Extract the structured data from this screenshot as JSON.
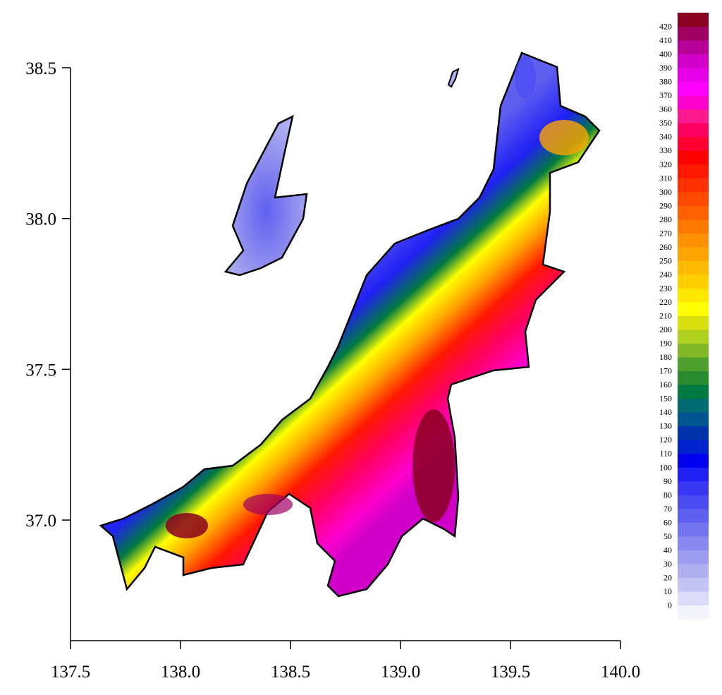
{
  "map": {
    "xlim": [
      137.5,
      140.0
    ],
    "ylim": [
      36.6,
      38.5
    ],
    "xticks": [
      137.5,
      {
        "value": 138.0,
        "label": "138.0"
      },
      138.5,
      {
        "value": 139.0,
        "label": "139.0"
      },
      139.5,
      {
        "value": 140.0,
        "label": "140.0"
      }
    ],
    "yticks": [
      {
        "value": 37.0,
        "label": "37.0"
      },
      37.5,
      {
        "value": 38.0,
        "label": "38.0"
      },
      38.5
    ],
    "colorbar": {
      "labels": [
        0,
        10,
        20,
        30,
        40,
        50,
        60,
        70,
        80,
        90,
        100,
        110,
        120,
        130,
        140,
        150,
        160,
        170,
        180,
        190,
        200,
        210,
        220,
        230,
        240,
        250,
        260,
        270,
        280,
        290,
        300,
        310,
        320,
        330,
        340,
        350,
        360,
        370,
        380,
        390,
        400,
        410,
        420
      ],
      "colors": [
        "#f4f4fc",
        "#dcdcf8",
        "#c4c4f4",
        "#b0b0f0",
        "#9c9cf0",
        "#8888f0",
        "#7474f0",
        "#6060f0",
        "#4c4cf4",
        "#3838f4",
        "#2020f4",
        "#0000f0",
        "#0022cc",
        "#0033aa",
        "#005590",
        "#006a70",
        "#007a40",
        "#2a8a30",
        "#50a030",
        "#80b828",
        "#b0d020",
        "#d8e010",
        "#ffff00",
        "#ffe800",
        "#ffd000",
        "#ffbb00",
        "#ffa500",
        "#ff9000",
        "#ff7800",
        "#ff6000",
        "#ff4800",
        "#ff3000",
        "#ff1800",
        "#ff0000",
        "#ff0030",
        "#ff0060",
        "#ff1a90",
        "#ff00cc",
        "#ff00ff",
        "#e800e8",
        "#d000c8",
        "#b80098",
        "#a00060",
        "#8a0020"
      ]
    }
  }
}
